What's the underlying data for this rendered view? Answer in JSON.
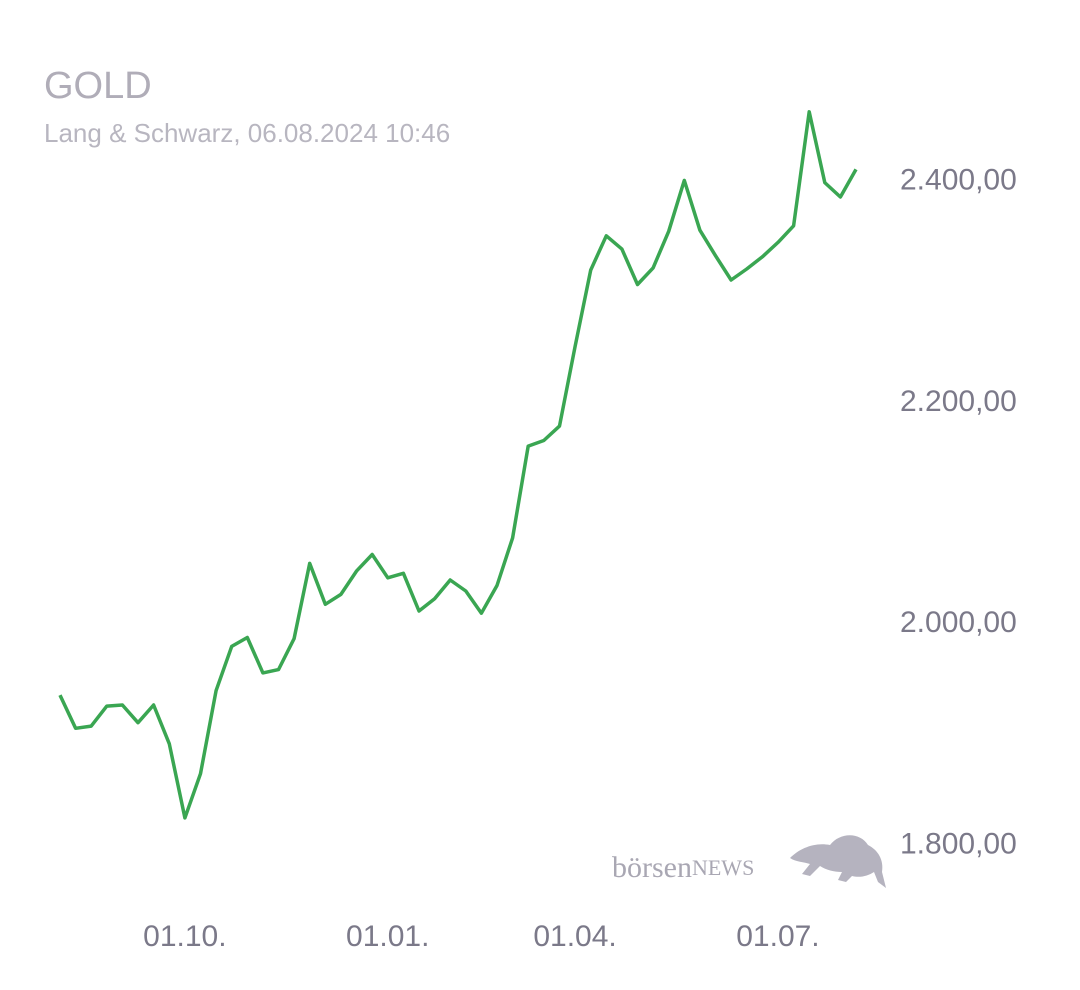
{
  "chart_data": {
    "type": "line",
    "title": "GOLD",
    "subtitle": "Lang & Schwarz, 06.08.2024 10:46",
    "categories": [
      null,
      null,
      null,
      null,
      null,
      null,
      null,
      null,
      "01.10.",
      null,
      null,
      null,
      null,
      null,
      null,
      null,
      null,
      null,
      null,
      null,
      null,
      "01.01.",
      null,
      null,
      null,
      null,
      null,
      null,
      null,
      null,
      null,
      null,
      null,
      "01.04.",
      null,
      null,
      null,
      null,
      null,
      null,
      null,
      null,
      null,
      null,
      null,
      null,
      "01.07.",
      null,
      null,
      null,
      null,
      null
    ],
    "values": [
      1936,
      1906,
      1908,
      1926,
      1927,
      1911,
      1927,
      1892,
      1825,
      1865,
      1940,
      1980,
      1988,
      1956,
      1959,
      1987,
      2055,
      2018,
      2027,
      2048,
      2063,
      2042,
      2046,
      2012,
      2023,
      2040,
      2030,
      2010,
      2035,
      2078,
      2161,
      2166,
      2179,
      2251,
      2320,
      2351,
      2339,
      2307,
      2322,
      2355,
      2401,
      2356,
      2333,
      2311,
      2321,
      2332,
      2345,
      2360,
      2463,
      2399,
      2386,
      2411
    ],
    "color": "#3aa652",
    "ylim": [
      1740,
      2480
    ],
    "yticks": [
      {
        "value": 1800,
        "label": "1.800,00"
      },
      {
        "value": 2000,
        "label": "2.000,00"
      },
      {
        "value": 2200,
        "label": "2.200,00"
      },
      {
        "value": 2400,
        "label": "2.400,00"
      }
    ],
    "grid": false
  },
  "logo": {
    "text1": "börsen",
    "text2": "NEWS"
  }
}
